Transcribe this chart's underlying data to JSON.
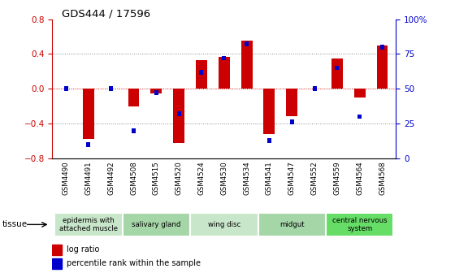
{
  "title": "GDS444 / 17596",
  "samples": [
    "GSM4490",
    "GSM4491",
    "GSM4492",
    "GSM4508",
    "GSM4515",
    "GSM4520",
    "GSM4524",
    "GSM4530",
    "GSM4534",
    "GSM4541",
    "GSM4547",
    "GSM4552",
    "GSM4559",
    "GSM4564",
    "GSM4568"
  ],
  "log_ratio": [
    0.0,
    -0.58,
    0.0,
    -0.2,
    -0.05,
    -0.62,
    0.33,
    0.37,
    0.55,
    -0.52,
    -0.32,
    0.0,
    0.35,
    -0.1,
    0.5
  ],
  "percentile": [
    50,
    10,
    50,
    20,
    47,
    32,
    62,
    72,
    82,
    13,
    26,
    50,
    65,
    30,
    80
  ],
  "groups": [
    {
      "label": "epidermis with\nattached muscle",
      "indices": [
        0,
        1,
        2
      ],
      "color": "#c8e6c9"
    },
    {
      "label": "salivary gland",
      "indices": [
        3,
        4,
        5
      ],
      "color": "#a5d6a7"
    },
    {
      "label": "wing disc",
      "indices": [
        6,
        7,
        8
      ],
      "color": "#c8e6c9"
    },
    {
      "label": "midgut",
      "indices": [
        9,
        10,
        11
      ],
      "color": "#a5d6a7"
    },
    {
      "label": "central nervous\nsystem",
      "indices": [
        12,
        13,
        14
      ],
      "color": "#66dd66"
    }
  ],
  "ylim": [
    -0.8,
    0.8
  ],
  "yticks": [
    -0.8,
    -0.4,
    0.0,
    0.4,
    0.8
  ],
  "y2ticks": [
    0,
    25,
    50,
    75,
    100
  ],
  "bar_color": "#cc0000",
  "percentile_color": "#0000cc",
  "dotted_line_color": "#888888",
  "zero_line_color": "#cc0000"
}
